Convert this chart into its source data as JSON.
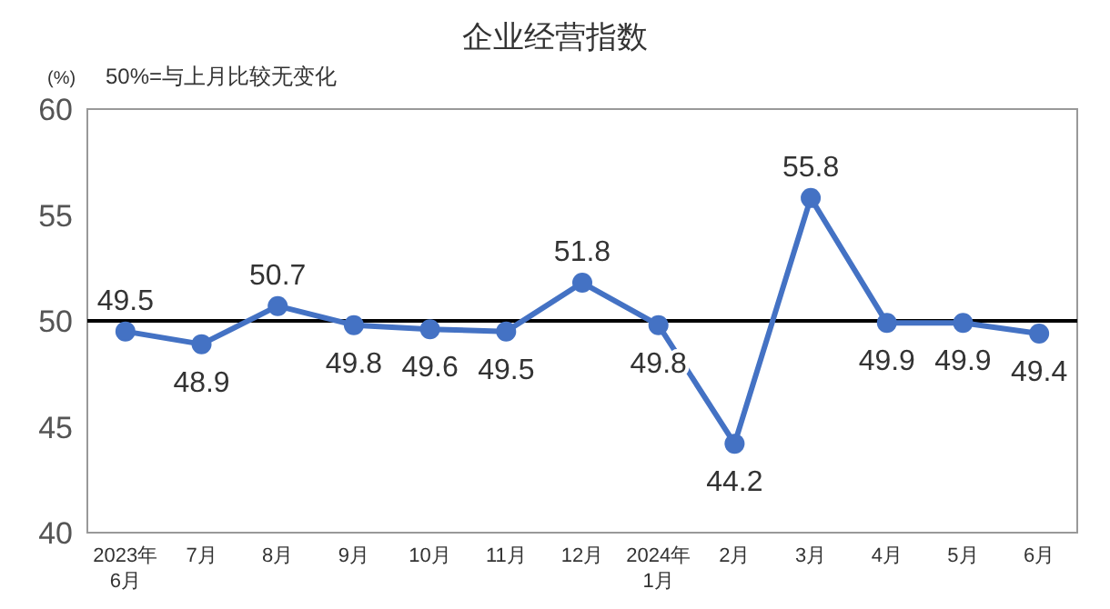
{
  "chart_data": {
    "type": "line",
    "title": "企业经营指数",
    "ylabel": "(%)",
    "subtitle": "50%=与上月比较无变化",
    "categories": [
      "2023年\n6月",
      "7月",
      "8月",
      "9月",
      "10月",
      "11月",
      "12月",
      "2024年\n1月",
      "2月",
      "3月",
      "4月",
      "5月",
      "6月"
    ],
    "series": [
      {
        "color": "#4472c4",
        "values": [
          49.5,
          48.9,
          50.7,
          49.8,
          49.6,
          49.5,
          51.8,
          49.8,
          44.2,
          55.8,
          49.9,
          49.9,
          49.4
        ]
      }
    ],
    "ylim": [
      40,
      60
    ],
    "yticks": [
      40,
      45,
      50,
      55,
      60
    ],
    "ref_lines": [
      {
        "axis": "y",
        "value": 50,
        "color": "#000000"
      }
    ],
    "data_labels": true,
    "marker": "circle",
    "line_style": "solid"
  }
}
